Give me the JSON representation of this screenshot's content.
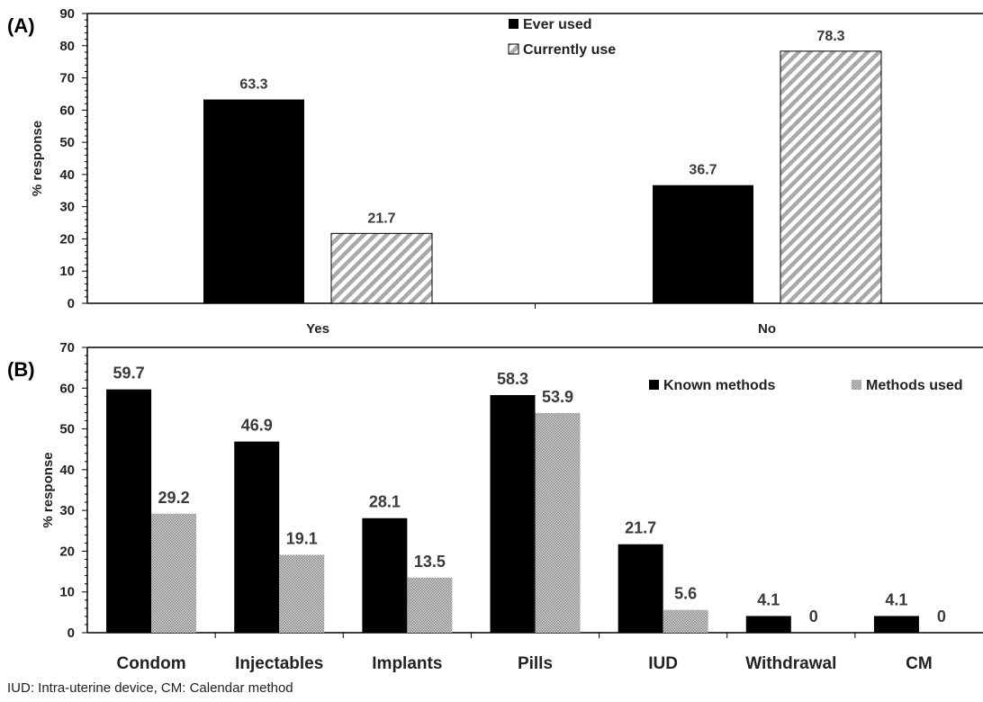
{
  "footnote": "IUD: Intra-uterine device, CM: Calendar method",
  "chart_data": [
    {
      "panel": "(A)",
      "type": "bar",
      "ylabel": "% response",
      "ylim": [
        0,
        90
      ],
      "yticks": [
        0,
        10,
        20,
        30,
        40,
        50,
        60,
        70,
        80,
        90
      ],
      "categories": [
        "Yes",
        "No"
      ],
      "series": [
        {
          "name": "Ever used",
          "values": [
            63.3,
            36.7
          ],
          "fill": "#000000",
          "pattern": "solid"
        },
        {
          "name": "Currently use",
          "values": [
            21.7,
            78.3
          ],
          "fill": "#a9a9a9",
          "pattern": "diagonal-stripes"
        }
      ],
      "legend": "top-center",
      "grid": false
    },
    {
      "panel": "(B)",
      "type": "bar",
      "ylabel": "% response",
      "ylim": [
        0,
        70
      ],
      "yticks": [
        0,
        10,
        20,
        30,
        40,
        50,
        60,
        70
      ],
      "categories": [
        "Condom",
        "Injectables",
        "Implants",
        "Pills",
        "IUD",
        "Withdrawal",
        "CM"
      ],
      "series": [
        {
          "name": "Known methods",
          "values": [
            59.7,
            46.9,
            28.1,
            58.3,
            21.7,
            4.1,
            4.1
          ],
          "fill": "#000000",
          "pattern": "solid"
        },
        {
          "name": "Methods used",
          "values": [
            29.2,
            19.1,
            13.5,
            53.9,
            5.6,
            0,
            0
          ],
          "fill": "#b4b4b4",
          "pattern": "dotted"
        }
      ],
      "legend": "top-right",
      "grid": false
    }
  ]
}
